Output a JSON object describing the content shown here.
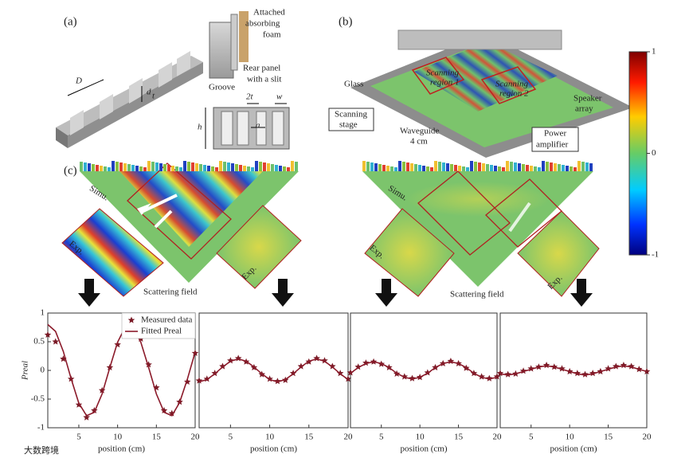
{
  "panel_a": {
    "label": "(a)",
    "D": "D",
    "d": "d",
    "d_sub": "t",
    "foam": [
      "Attached",
      "absorbing",
      "foam"
    ],
    "rear": [
      "Rear panel",
      "with a slit"
    ],
    "groove": "Groove",
    "two_t": "2t",
    "w": "w",
    "h": "h",
    "a": "a"
  },
  "panel_b": {
    "label": "(b)",
    "glass": "Glass",
    "region1": [
      "Scanning",
      "region 1"
    ],
    "region2": [
      "Scanning",
      "region 2"
    ],
    "speaker": [
      "Speaker",
      "array"
    ],
    "stage": [
      "Scanning",
      "stage"
    ],
    "waveguide": [
      "Waveguide",
      "4 cm"
    ],
    "amplifier": [
      "Power",
      "amplifier"
    ]
  },
  "colorbar": {
    "ticks": [
      1,
      0,
      -1
    ]
  },
  "panel_c": {
    "label": "(c)",
    "simu": [
      "Simu.",
      "Simu."
    ],
    "exp": [
      "Exp.",
      "Exp.",
      "Exp.",
      "Exp."
    ],
    "field": [
      "Scattering field",
      "Scattering field"
    ]
  },
  "watermark": "大数跨境",
  "chart_data": [
    {
      "type": "line",
      "xlabel": "position (cm)",
      "ylabel": "Preal",
      "xlim": [
        1,
        20
      ],
      "ylim": [
        -1,
        1
      ],
      "xticks": [
        5,
        10,
        15,
        20
      ],
      "yticks": [
        -1,
        -0.5,
        0,
        0.5,
        1
      ],
      "legend": "upper right",
      "x": [
        1,
        2,
        3,
        4,
        5,
        6,
        7,
        8,
        9,
        10,
        11,
        12,
        13,
        14,
        15,
        16,
        17,
        18,
        19,
        20
      ],
      "series": [
        {
          "name": "Measured data",
          "color": "#7a1a26",
          "marker": "star",
          "values": [
            0.62,
            0.5,
            0.2,
            -0.15,
            -0.6,
            -0.82,
            -0.7,
            -0.35,
            0.05,
            0.45,
            0.8,
            0.75,
            0.55,
            0.1,
            -0.3,
            -0.7,
            -0.75,
            -0.55,
            -0.2,
            0.3
          ]
        },
        {
          "name": "Fitted Preal",
          "color": "#8b1a2a",
          "marker": "line",
          "values": [
            0.8,
            0.68,
            0.33,
            -0.14,
            -0.57,
            -0.79,
            -0.73,
            -0.41,
            0.05,
            0.49,
            0.76,
            0.76,
            0.49,
            0.05,
            -0.41,
            -0.73,
            -0.79,
            -0.56,
            -0.15,
            0.32
          ]
        }
      ]
    },
    {
      "type": "line",
      "xlabel": "position (cm)",
      "xlim": [
        1,
        20
      ],
      "ylim": [
        -1,
        1
      ],
      "xticks": [
        5,
        10,
        15,
        20
      ],
      "x": [
        1,
        2,
        3,
        4,
        5,
        6,
        7,
        8,
        9,
        10,
        11,
        12,
        13,
        14,
        15,
        16,
        17,
        18,
        19,
        20
      ],
      "series": [
        {
          "color": "#7a1a26",
          "marker": "star",
          "values": [
            -0.18,
            -0.15,
            -0.05,
            0.07,
            0.17,
            0.21,
            0.15,
            0.05,
            -0.07,
            -0.15,
            -0.19,
            -0.17,
            -0.05,
            0.07,
            0.15,
            0.21,
            0.17,
            0.07,
            -0.05,
            -0.15
          ]
        },
        {
          "color": "#8b1a2a",
          "marker": "line",
          "values": [
            -0.2,
            -0.16,
            -0.06,
            0.06,
            0.16,
            0.2,
            0.16,
            0.06,
            -0.06,
            -0.16,
            -0.2,
            -0.16,
            -0.06,
            0.06,
            0.16,
            0.2,
            0.16,
            0.06,
            -0.06,
            -0.16
          ]
        }
      ]
    },
    {
      "type": "line",
      "xlabel": "position (cm)",
      "xlim": [
        1,
        20
      ],
      "ylim": [
        -1,
        1
      ],
      "xticks": [
        5,
        10,
        15,
        20
      ],
      "x": [
        1,
        2,
        3,
        4,
        5,
        6,
        7,
        8,
        9,
        10,
        11,
        12,
        13,
        14,
        15,
        16,
        17,
        18,
        19,
        20
      ],
      "series": [
        {
          "color": "#7a1a26",
          "marker": "star",
          "values": [
            -0.04,
            0.06,
            0.13,
            0.15,
            0.11,
            0.05,
            -0.06,
            -0.11,
            -0.14,
            -0.12,
            -0.04,
            0.05,
            0.12,
            0.16,
            0.12,
            0.04,
            -0.05,
            -0.11,
            -0.14,
            -0.11
          ]
        },
        {
          "color": "#8b1a2a",
          "marker": "line",
          "values": [
            -0.05,
            0.05,
            0.12,
            0.15,
            0.12,
            0.05,
            -0.05,
            -0.12,
            -0.15,
            -0.12,
            -0.05,
            0.05,
            0.12,
            0.15,
            0.12,
            0.05,
            -0.05,
            -0.12,
            -0.15,
            -0.12
          ]
        }
      ]
    },
    {
      "type": "line",
      "xlabel": "position (cm)",
      "xlim": [
        1,
        20
      ],
      "ylim": [
        -1,
        1
      ],
      "xticks": [
        5,
        10,
        15,
        20
      ],
      "x": [
        1,
        2,
        3,
        4,
        5,
        6,
        7,
        8,
        9,
        10,
        11,
        12,
        13,
        14,
        15,
        16,
        17,
        18,
        19,
        20
      ],
      "series": [
        {
          "color": "#7a1a26",
          "marker": "star",
          "values": [
            -0.05,
            -0.07,
            -0.06,
            -0.01,
            0.03,
            0.06,
            0.09,
            0.06,
            0.03,
            -0.02,
            -0.05,
            -0.07,
            -0.05,
            -0.02,
            0.03,
            0.07,
            0.09,
            0.07,
            0.02,
            -0.02
          ]
        },
        {
          "color": "#8b1a2a",
          "marker": "line",
          "values": [
            -0.06,
            -0.08,
            -0.06,
            -0.02,
            0.02,
            0.06,
            0.08,
            0.06,
            0.02,
            -0.02,
            -0.06,
            -0.08,
            -0.06,
            -0.02,
            0.02,
            0.06,
            0.08,
            0.06,
            0.02,
            -0.02
          ]
        }
      ]
    }
  ]
}
